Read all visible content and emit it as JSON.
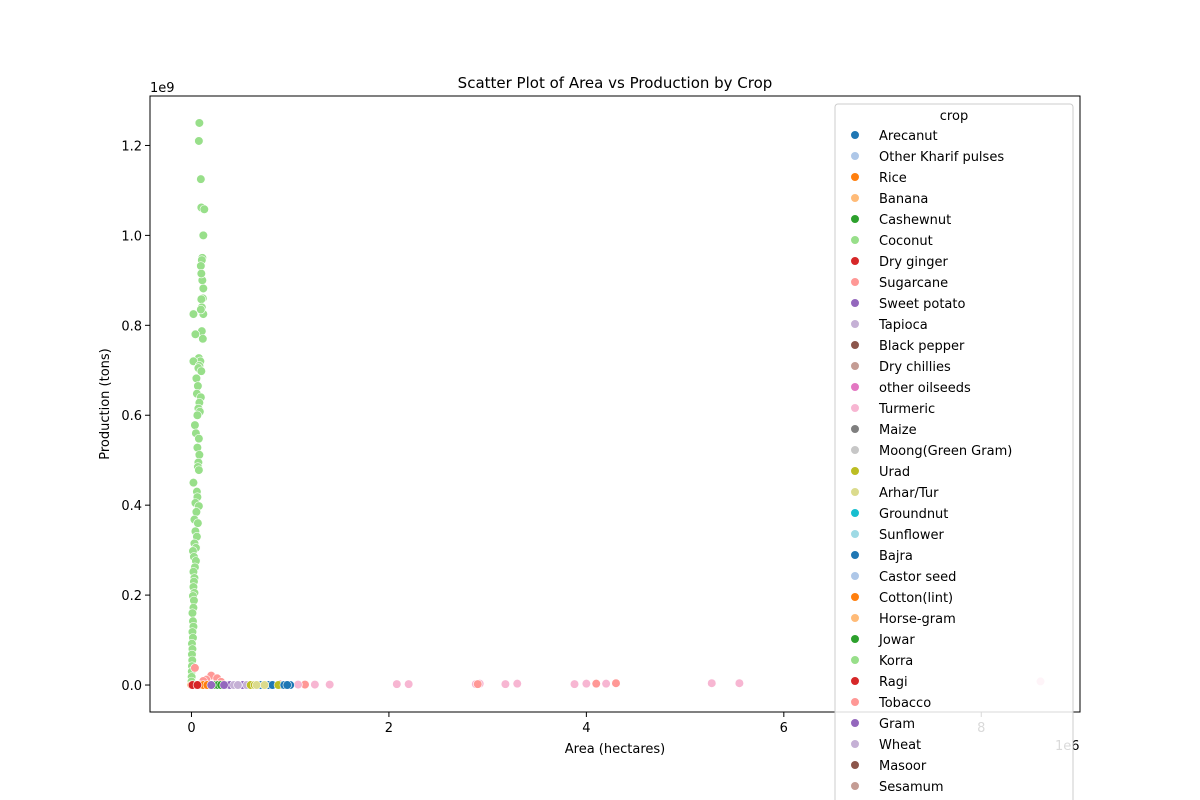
{
  "chart_data": {
    "type": "scatter",
    "title": "Scatter Plot of Area vs Production by Crop",
    "xlabel": "Area (hectares)",
    "ylabel": "Production (tons)",
    "x_offset_label": "1e6",
    "y_offset_label": "1e9",
    "xlim": [
      -420000,
      9000000
    ],
    "ylim": [
      -60000000,
      1310000000
    ],
    "x_ticks": [
      0,
      2000000,
      4000000,
      6000000,
      8000000
    ],
    "x_tick_labels": [
      "0",
      "2",
      "4",
      "6",
      "8"
    ],
    "y_ticks": [
      0,
      200000000,
      400000000,
      600000000,
      800000000,
      1000000000,
      1200000000
    ],
    "y_tick_labels": [
      "0.0",
      "0.2",
      "0.4",
      "0.6",
      "0.8",
      "1.0",
      "1.2"
    ],
    "grid": false,
    "legend": {
      "title": "crop",
      "placement": "upper right",
      "entries": [
        {
          "name": "Arecanut",
          "color": "#1f77b4"
        },
        {
          "name": "Other Kharif pulses",
          "color": "#aec7e8"
        },
        {
          "name": "Rice",
          "color": "#ff7f0e"
        },
        {
          "name": "Banana",
          "color": "#ffbb78"
        },
        {
          "name": "Cashewnut",
          "color": "#2ca02c"
        },
        {
          "name": "Coconut",
          "color": "#98df8a"
        },
        {
          "name": "Dry ginger",
          "color": "#d62728"
        },
        {
          "name": "Sugarcane",
          "color": "#ff9896"
        },
        {
          "name": "Sweet potato",
          "color": "#9467bd"
        },
        {
          "name": "Tapioca",
          "color": "#c5b0d5"
        },
        {
          "name": "Black pepper",
          "color": "#8c564b"
        },
        {
          "name": "Dry chillies",
          "color": "#c49c94"
        },
        {
          "name": "other oilseeds",
          "color": "#e377c2"
        },
        {
          "name": "Turmeric",
          "color": "#f7b6d2"
        },
        {
          "name": "Maize",
          "color": "#7f7f7f"
        },
        {
          "name": "Moong(Green Gram)",
          "color": "#c7c7c7"
        },
        {
          "name": "Urad",
          "color": "#bcbd22"
        },
        {
          "name": "Arhar/Tur",
          "color": "#dbdb8d"
        },
        {
          "name": "Groundnut",
          "color": "#17becf"
        },
        {
          "name": "Sunflower",
          "color": "#9edae5"
        },
        {
          "name": "Bajra",
          "color": "#1f77b4"
        },
        {
          "name": "Castor seed",
          "color": "#aec7e8"
        },
        {
          "name": "Cotton(lint)",
          "color": "#ff7f0e"
        },
        {
          "name": "Horse-gram",
          "color": "#ffbb78"
        },
        {
          "name": "Jowar",
          "color": "#2ca02c"
        },
        {
          "name": "Korra",
          "color": "#98df8a"
        },
        {
          "name": "Ragi",
          "color": "#d62728"
        },
        {
          "name": "Tobacco",
          "color": "#ff9896"
        },
        {
          "name": "Gram",
          "color": "#9467bd"
        },
        {
          "name": "Wheat",
          "color": "#c5b0d5"
        },
        {
          "name": "Masoor",
          "color": "#8c564b"
        },
        {
          "name": "Sesamum",
          "color": "#c49c94"
        }
      ]
    },
    "series": [
      {
        "name": "Coconut",
        "color": "#98df8a",
        "points": [
          [
            80000,
            1250000000
          ],
          [
            75000,
            1210000000
          ],
          [
            95000,
            1125000000
          ],
          [
            100000,
            1062000000
          ],
          [
            130000,
            1058000000
          ],
          [
            120000,
            1000000000
          ],
          [
            110000,
            950000000
          ],
          [
            105000,
            945000000
          ],
          [
            95000,
            932000000
          ],
          [
            110000,
            900000000
          ],
          [
            100000,
            915000000
          ],
          [
            120000,
            882000000
          ],
          [
            115000,
            860000000
          ],
          [
            100000,
            858000000
          ],
          [
            105000,
            840000000
          ],
          [
            20000,
            825000000
          ],
          [
            120000,
            825000000
          ],
          [
            95000,
            835000000
          ],
          [
            105000,
            787000000
          ],
          [
            40000,
            780000000
          ],
          [
            115000,
            770000000
          ],
          [
            75000,
            727000000
          ],
          [
            90000,
            720000000
          ],
          [
            20000,
            720000000
          ],
          [
            80000,
            710000000
          ],
          [
            70000,
            705000000
          ],
          [
            100000,
            698000000
          ],
          [
            50000,
            682000000
          ],
          [
            65000,
            665000000
          ],
          [
            55000,
            648000000
          ],
          [
            95000,
            640000000
          ],
          [
            80000,
            628000000
          ],
          [
            70000,
            615000000
          ],
          [
            85000,
            608000000
          ],
          [
            60000,
            600000000
          ],
          [
            35000,
            578000000
          ],
          [
            45000,
            560000000
          ],
          [
            75000,
            548000000
          ],
          [
            60000,
            528000000
          ],
          [
            80000,
            512000000
          ],
          [
            70000,
            495000000
          ],
          [
            65000,
            485000000
          ],
          [
            75000,
            478000000
          ],
          [
            20000,
            450000000
          ],
          [
            55000,
            430000000
          ],
          [
            60000,
            418000000
          ],
          [
            40000,
            405000000
          ],
          [
            75000,
            398000000
          ],
          [
            50000,
            385000000
          ],
          [
            30000,
            368000000
          ],
          [
            65000,
            360000000
          ],
          [
            40000,
            342000000
          ],
          [
            55000,
            330000000
          ],
          [
            30000,
            315000000
          ],
          [
            45000,
            305000000
          ],
          [
            15000,
            298000000
          ],
          [
            25000,
            285000000
          ],
          [
            45000,
            276000000
          ],
          [
            35000,
            262000000
          ],
          [
            20000,
            252000000
          ],
          [
            30000,
            238000000
          ],
          [
            25000,
            230000000
          ],
          [
            20000,
            218000000
          ],
          [
            30000,
            205000000
          ],
          [
            15000,
            198000000
          ],
          [
            25000,
            188000000
          ],
          [
            20000,
            172000000
          ],
          [
            10000,
            160000000
          ],
          [
            15000,
            142000000
          ],
          [
            20000,
            130000000
          ],
          [
            10000,
            118000000
          ],
          [
            15000,
            105000000
          ],
          [
            5000,
            92000000
          ],
          [
            10000,
            80000000
          ],
          [
            5000,
            68000000
          ],
          [
            8000,
            55000000
          ],
          [
            5000,
            42000000
          ],
          [
            3000,
            30000000
          ],
          [
            2000,
            18000000
          ],
          [
            1000,
            8000000
          ]
        ]
      },
      {
        "name": "Sugarcane",
        "color": "#ff9896",
        "points": [
          [
            35000,
            38000000
          ],
          [
            200000,
            21000000
          ],
          [
            260000,
            15000000
          ],
          [
            150000,
            12000000
          ],
          [
            120000,
            9000000
          ],
          [
            300000,
            7000000
          ],
          [
            900000,
            2000000
          ],
          [
            1150000,
            1000000
          ]
        ]
      },
      {
        "name": "Turmeric",
        "color": "#f7b6d2",
        "points": [
          [
            1080000,
            1000000
          ],
          [
            1250000,
            1000000
          ],
          [
            1400000,
            1000000
          ],
          [
            2080000,
            2000000
          ],
          [
            2200000,
            2000000
          ],
          [
            2880000,
            2000000
          ],
          [
            2920000,
            3000000
          ],
          [
            3180000,
            2000000
          ],
          [
            3300000,
            3000000
          ],
          [
            3880000,
            2000000
          ],
          [
            4000000,
            3000000
          ],
          [
            4200000,
            3000000
          ],
          [
            5270000,
            4000000
          ],
          [
            5550000,
            4000000
          ],
          [
            8600000,
            8000000
          ]
        ]
      },
      {
        "name": "Tobacco",
        "color": "#ff9896",
        "points": [
          [
            2900000,
            2000000
          ],
          [
            4100000,
            3000000
          ],
          [
            4300000,
            4000000
          ]
        ]
      },
      {
        "name": "Arecanut",
        "color": "#1f77b4",
        "points": [
          [
            700000,
            0
          ],
          [
            780000,
            0
          ],
          [
            820000,
            0
          ],
          [
            920000,
            0
          ],
          [
            1000000,
            0
          ]
        ]
      },
      {
        "name": "Rice",
        "color": "#ff7f0e",
        "points": [
          [
            0,
            0
          ],
          [
            40000,
            0
          ],
          [
            80000,
            0
          ],
          [
            120000,
            0
          ],
          [
            160000,
            0
          ]
        ]
      },
      {
        "name": "Cashewnut",
        "color": "#2ca02c",
        "points": [
          [
            240000,
            0
          ],
          [
            270000,
            0
          ],
          [
            300000,
            0
          ]
        ]
      },
      {
        "name": "Sweet potato",
        "color": "#9467bd",
        "points": [
          [
            350000,
            0
          ],
          [
            390000,
            0
          ],
          [
            520000,
            0
          ]
        ]
      },
      {
        "name": "Tapioca",
        "color": "#c5b0d5",
        "points": [
          [
            430000,
            0
          ],
          [
            470000,
            0
          ],
          [
            560000,
            0
          ]
        ]
      },
      {
        "name": "Urad",
        "color": "#bcbd22",
        "points": [
          [
            600000,
            0
          ],
          [
            640000,
            0
          ],
          [
            880000,
            0
          ]
        ]
      },
      {
        "name": "Arhar/Tur",
        "color": "#dbdb8d",
        "points": [
          [
            660000,
            0
          ],
          [
            740000,
            0
          ]
        ]
      },
      {
        "name": "Bajra",
        "color": "#1f77b4",
        "points": [
          [
            940000,
            0
          ],
          [
            970000,
            0
          ]
        ]
      },
      {
        "name": "Dry ginger",
        "color": "#d62728",
        "points": [
          [
            10000,
            0
          ],
          [
            60000,
            0
          ]
        ]
      },
      {
        "name": "Gram",
        "color": "#9467bd",
        "points": [
          [
            200000,
            0
          ],
          [
            330000,
            0
          ]
        ]
      }
    ]
  }
}
